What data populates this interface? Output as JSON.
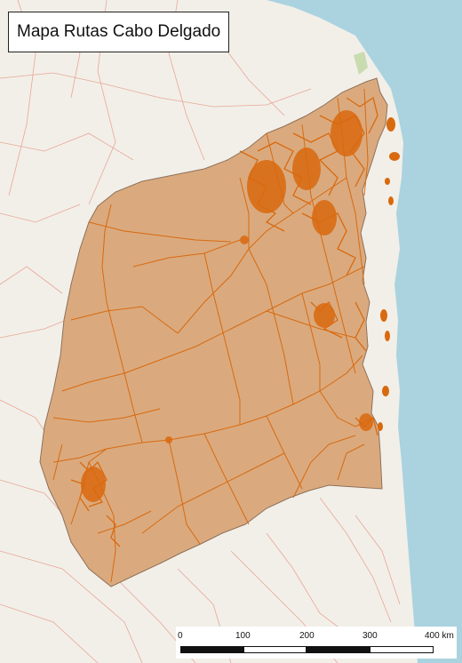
{
  "title": "Mapa Rutas Cabo Delgado",
  "colors": {
    "sea": "#aad3df",
    "land": "#f2efe9",
    "province_fill": "#d9a779",
    "province_stroke": "#8a6a52",
    "roads": "#d9690e",
    "base_roads": "#e7a08e"
  },
  "scale_bar": {
    "labels": [
      "0",
      "100",
      "200",
      "300",
      "400 km"
    ],
    "segment_colors": [
      "#111111",
      "#ffffff",
      "#111111",
      "#ffffff"
    ]
  }
}
